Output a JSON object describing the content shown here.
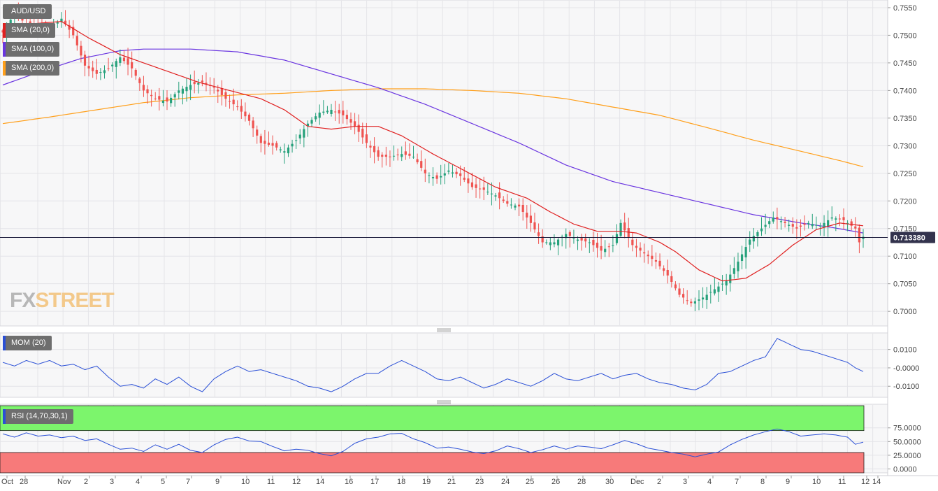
{
  "colors": {
    "up": "#26a17b",
    "down": "#ef5350",
    "sma20": "#e02020",
    "sma100": "#6a35e0",
    "sma200": "#ff9f1a",
    "momentum": "#2a4fd6",
    "rsi": "#2a4fd6",
    "overbought": "#7cf56c",
    "oversold": "#f77a7a",
    "price_line": "#1a1a3a",
    "price_label_bg": "#33334d"
  },
  "legend": {
    "symbol": "AUD/USD",
    "sma20": "SMA (20,0)",
    "sma100": "SMA (100,0)",
    "sma200": "SMA (200,0)",
    "momentum": "MOM (20)",
    "rsi": "RSI (14,70,30,1)"
  },
  "watermark": {
    "part1": "FX",
    "part2": "STREET"
  },
  "current_price": "0.713380",
  "chart_data": [
    {
      "type": "candlestick",
      "ylim": [
        0.6985,
        0.7555
      ],
      "y_ticks": [
        "0.7550",
        "0.7500",
        "0.7450",
        "0.7400",
        "0.7350",
        "0.7300",
        "0.7250",
        "0.7200",
        "0.7150",
        "0.7100",
        "0.7050",
        "0.7000"
      ],
      "x_ticks": [
        "Oct",
        "28",
        "Nov",
        "2",
        "3",
        "4",
        "5",
        "7",
        "9",
        "10",
        "11",
        "12",
        "14",
        "16",
        "17",
        "18",
        "19",
        "21",
        "23",
        "24",
        "25",
        "26",
        "28",
        "30",
        "Dec",
        "2",
        "3",
        "4",
        "5",
        "7",
        "8",
        "9",
        "10",
        "11",
        "12",
        "14"
      ],
      "grid": true,
      "price_anchors": [
        [
          0,
          0.7505
        ],
        [
          3,
          0.754
        ],
        [
          6,
          0.752
        ],
        [
          9,
          0.7515
        ],
        [
          12,
          0.751
        ],
        [
          15,
          0.753
        ],
        [
          18,
          0.75
        ],
        [
          21,
          0.7445
        ],
        [
          24,
          0.743
        ],
        [
          27,
          0.744
        ],
        [
          30,
          0.746
        ],
        [
          33,
          0.744
        ],
        [
          36,
          0.74
        ],
        [
          39,
          0.7385
        ],
        [
          42,
          0.738
        ],
        [
          45,
          0.74
        ],
        [
          48,
          0.741
        ],
        [
          51,
          0.7415
        ],
        [
          54,
          0.7405
        ],
        [
          57,
          0.7385
        ],
        [
          60,
          0.737
        ],
        [
          63,
          0.7345
        ],
        [
          66,
          0.7305
        ],
        [
          69,
          0.73
        ],
        [
          72,
          0.729
        ],
        [
          75,
          0.731
        ],
        [
          78,
          0.734
        ],
        [
          81,
          0.736
        ],
        [
          84,
          0.7365
        ],
        [
          87,
          0.7355
        ],
        [
          90,
          0.7335
        ],
        [
          93,
          0.7305
        ],
        [
          96,
          0.728
        ],
        [
          99,
          0.728
        ],
        [
          102,
          0.7285
        ],
        [
          105,
          0.728
        ],
        [
          108,
          0.725
        ],
        [
          111,
          0.724
        ],
        [
          114,
          0.7255
        ],
        [
          117,
          0.7245
        ],
        [
          120,
          0.7225
        ],
        [
          123,
          0.722
        ],
        [
          126,
          0.721
        ],
        [
          129,
          0.7195
        ],
        [
          132,
          0.719
        ],
        [
          135,
          0.716
        ],
        [
          138,
          0.7125
        ],
        [
          141,
          0.7125
        ],
        [
          144,
          0.714
        ],
        [
          147,
          0.713
        ],
        [
          150,
          0.7125
        ],
        [
          153,
          0.711
        ],
        [
          156,
          0.712
        ],
        [
          158,
          0.716
        ],
        [
          161,
          0.712
        ],
        [
          164,
          0.7105
        ],
        [
          167,
          0.709
        ],
        [
          170,
          0.7065
        ],
        [
          173,
          0.703
        ],
        [
          176,
          0.7015
        ],
        [
          179,
          0.7025
        ],
        [
          182,
          0.704
        ],
        [
          185,
          0.7055
        ],
        [
          188,
          0.709
        ],
        [
          191,
          0.713
        ],
        [
          194,
          0.715
        ],
        [
          197,
          0.717
        ],
        [
          200,
          0.716
        ],
        [
          203,
          0.715
        ],
        [
          206,
          0.716
        ],
        [
          209,
          0.7155
        ],
        [
          212,
          0.717
        ],
        [
          215,
          0.7165
        ],
        [
          218,
          0.715
        ],
        [
          219,
          0.7125
        ],
        [
          220,
          0.7135
        ]
      ],
      "sma20_anchors": [
        [
          0,
          0.751
        ],
        [
          6,
          0.752
        ],
        [
          15,
          0.7525
        ],
        [
          22,
          0.7495
        ],
        [
          30,
          0.7465
        ],
        [
          40,
          0.744
        ],
        [
          50,
          0.7415
        ],
        [
          58,
          0.74
        ],
        [
          66,
          0.7385
        ],
        [
          72,
          0.7365
        ],
        [
          78,
          0.7335
        ],
        [
          84,
          0.733
        ],
        [
          90,
          0.7335
        ],
        [
          96,
          0.7335
        ],
        [
          102,
          0.7318
        ],
        [
          110,
          0.7285
        ],
        [
          118,
          0.7255
        ],
        [
          126,
          0.7225
        ],
        [
          134,
          0.7205
        ],
        [
          140,
          0.718
        ],
        [
          146,
          0.7158
        ],
        [
          152,
          0.7145
        ],
        [
          158,
          0.7145
        ],
        [
          162,
          0.7142
        ],
        [
          168,
          0.7125
        ],
        [
          172,
          0.7108
        ],
        [
          178,
          0.7075
        ],
        [
          184,
          0.7055
        ],
        [
          190,
          0.706
        ],
        [
          196,
          0.7085
        ],
        [
          202,
          0.712
        ],
        [
          208,
          0.7148
        ],
        [
          214,
          0.716
        ],
        [
          220,
          0.7155
        ]
      ],
      "sma100_anchors": [
        [
          0,
          0.741
        ],
        [
          10,
          0.7435
        ],
        [
          20,
          0.7458
        ],
        [
          30,
          0.7472
        ],
        [
          36,
          0.7475
        ],
        [
          48,
          0.7475
        ],
        [
          60,
          0.747
        ],
        [
          72,
          0.7455
        ],
        [
          84,
          0.743
        ],
        [
          96,
          0.7405
        ],
        [
          108,
          0.7375
        ],
        [
          120,
          0.734
        ],
        [
          132,
          0.7305
        ],
        [
          144,
          0.7265
        ],
        [
          156,
          0.7235
        ],
        [
          168,
          0.7215
        ],
        [
          180,
          0.7195
        ],
        [
          192,
          0.7175
        ],
        [
          204,
          0.716
        ],
        [
          212,
          0.7152
        ],
        [
          220,
          0.7142
        ]
      ],
      "sma200_anchors": [
        [
          0,
          0.734
        ],
        [
          12,
          0.7352
        ],
        [
          24,
          0.7365
        ],
        [
          36,
          0.7378
        ],
        [
          48,
          0.7387
        ],
        [
          60,
          0.7392
        ],
        [
          72,
          0.7395
        ],
        [
          84,
          0.74
        ],
        [
          96,
          0.7403
        ],
        [
          108,
          0.7403
        ],
        [
          120,
          0.74
        ],
        [
          132,
          0.7395
        ],
        [
          144,
          0.7385
        ],
        [
          156,
          0.737
        ],
        [
          168,
          0.7355
        ],
        [
          180,
          0.7333
        ],
        [
          192,
          0.731
        ],
        [
          204,
          0.729
        ],
        [
          214,
          0.7273
        ],
        [
          220,
          0.7262
        ]
      ]
    },
    {
      "type": "line",
      "name": "MOM (20)",
      "ylim": [
        -0.016,
        0.019
      ],
      "y_ticks": [
        "0.0100",
        "-0.0000",
        "-0.0100"
      ],
      "anchors": [
        [
          0,
          0.003
        ],
        [
          3,
          0.001
        ],
        [
          6,
          0.004
        ],
        [
          9,
          0.002
        ],
        [
          12,
          0.004
        ],
        [
          15,
          0.001
        ],
        [
          18,
          0.002
        ],
        [
          21,
          -0.001
        ],
        [
          24,
          0.001
        ],
        [
          27,
          -0.005
        ],
        [
          30,
          -0.01
        ],
        [
          33,
          -0.009
        ],
        [
          36,
          -0.011
        ],
        [
          39,
          -0.006
        ],
        [
          42,
          -0.009
        ],
        [
          45,
          -0.005
        ],
        [
          48,
          -0.01
        ],
        [
          51,
          -0.013
        ],
        [
          54,
          -0.006
        ],
        [
          57,
          -0.002
        ],
        [
          60,
          0.001
        ],
        [
          63,
          -0.002
        ],
        [
          66,
          -0.001
        ],
        [
          69,
          -0.003
        ],
        [
          72,
          -0.005
        ],
        [
          75,
          -0.007
        ],
        [
          78,
          -0.01
        ],
        [
          81,
          -0.011
        ],
        [
          84,
          -0.013
        ],
        [
          87,
          -0.01
        ],
        [
          90,
          -0.006
        ],
        [
          93,
          -0.003
        ],
        [
          96,
          -0.003
        ],
        [
          99,
          0.001
        ],
        [
          102,
          0.004
        ],
        [
          105,
          0.001
        ],
        [
          108,
          -0.002
        ],
        [
          111,
          -0.006
        ],
        [
          114,
          -0.007
        ],
        [
          117,
          -0.005
        ],
        [
          120,
          -0.008
        ],
        [
          123,
          -0.011
        ],
        [
          126,
          -0.009
        ],
        [
          129,
          -0.006
        ],
        [
          132,
          -0.008
        ],
        [
          135,
          -0.01
        ],
        [
          138,
          -0.007
        ],
        [
          141,
          -0.003
        ],
        [
          144,
          -0.006
        ],
        [
          147,
          -0.007
        ],
        [
          150,
          -0.005
        ],
        [
          153,
          -0.003
        ],
        [
          156,
          -0.006
        ],
        [
          159,
          -0.004
        ],
        [
          162,
          -0.003
        ],
        [
          165,
          -0.006
        ],
        [
          168,
          -0.008
        ],
        [
          171,
          -0.009
        ],
        [
          174,
          -0.011
        ],
        [
          177,
          -0.012
        ],
        [
          180,
          -0.009
        ],
        [
          183,
          -0.003
        ],
        [
          186,
          -0.002
        ],
        [
          189,
          0.001
        ],
        [
          192,
          0.004
        ],
        [
          195,
          0.006
        ],
        [
          198,
          0.016
        ],
        [
          201,
          0.013
        ],
        [
          204,
          0.01
        ],
        [
          207,
          0.009
        ],
        [
          210,
          0.007
        ],
        [
          213,
          0.005
        ],
        [
          216,
          0.003
        ],
        [
          218,
          0.0
        ],
        [
          220,
          -0.002
        ]
      ]
    },
    {
      "type": "line",
      "name": "RSI (14,70,30,1)",
      "ylim": [
        -2,
        90
      ],
      "y_ticks": [
        "75.0000",
        "50.0000",
        "25.0000",
        "0.0000"
      ],
      "overbought": 70,
      "oversold": 30,
      "anchors": [
        [
          0,
          64
        ],
        [
          3,
          58
        ],
        [
          6,
          66
        ],
        [
          9,
          60
        ],
        [
          12,
          62
        ],
        [
          15,
          57
        ],
        [
          18,
          60
        ],
        [
          21,
          52
        ],
        [
          24,
          55
        ],
        [
          27,
          45
        ],
        [
          30,
          36
        ],
        [
          33,
          38
        ],
        [
          36,
          32
        ],
        [
          39,
          44
        ],
        [
          42,
          36
        ],
        [
          45,
          45
        ],
        [
          48,
          34
        ],
        [
          51,
          30
        ],
        [
          54,
          44
        ],
        [
          57,
          54
        ],
        [
          60,
          58
        ],
        [
          63,
          51
        ],
        [
          66,
          50
        ],
        [
          69,
          41
        ],
        [
          72,
          33
        ],
        [
          75,
          36
        ],
        [
          78,
          34
        ],
        [
          81,
          28
        ],
        [
          84,
          24
        ],
        [
          87,
          32
        ],
        [
          90,
          47
        ],
        [
          93,
          55
        ],
        [
          96,
          58
        ],
        [
          99,
          64
        ],
        [
          102,
          65
        ],
        [
          105,
          55
        ],
        [
          108,
          48
        ],
        [
          111,
          38
        ],
        [
          114,
          40
        ],
        [
          117,
          36
        ],
        [
          120,
          31
        ],
        [
          123,
          28
        ],
        [
          126,
          33
        ],
        [
          129,
          42
        ],
        [
          132,
          37
        ],
        [
          135,
          30
        ],
        [
          138,
          35
        ],
        [
          141,
          42
        ],
        [
          144,
          36
        ],
        [
          147,
          42
        ],
        [
          150,
          40
        ],
        [
          153,
          37
        ],
        [
          156,
          44
        ],
        [
          159,
          52
        ],
        [
          162,
          46
        ],
        [
          165,
          38
        ],
        [
          168,
          34
        ],
        [
          171,
          30
        ],
        [
          174,
          27
        ],
        [
          177,
          22
        ],
        [
          180,
          27
        ],
        [
          183,
          31
        ],
        [
          186,
          44
        ],
        [
          189,
          54
        ],
        [
          192,
          62
        ],
        [
          195,
          68
        ],
        [
          198,
          73
        ],
        [
          201,
          68
        ],
        [
          204,
          60
        ],
        [
          207,
          62
        ],
        [
          210,
          64
        ],
        [
          213,
          62
        ],
        [
          216,
          58
        ],
        [
          218,
          45
        ],
        [
          220,
          49
        ]
      ]
    }
  ]
}
